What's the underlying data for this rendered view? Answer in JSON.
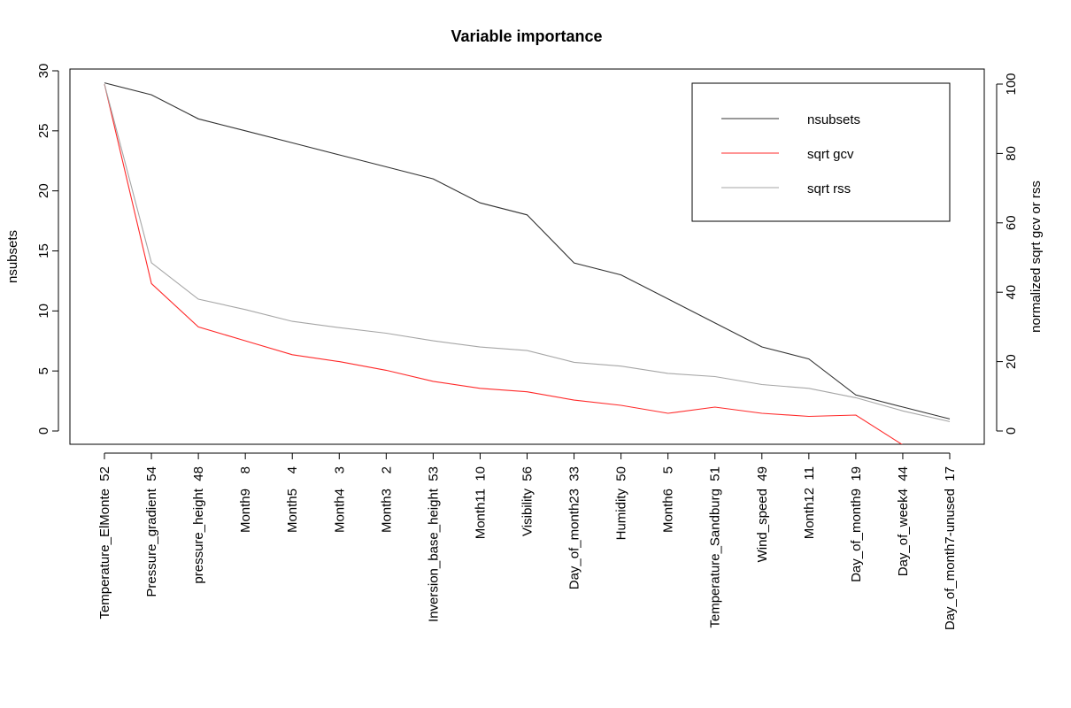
{
  "chart_data": {
    "type": "line",
    "title": "Variable importance",
    "ylabel_left": "nsubsets",
    "ylabel_right": "normalized sqrt gcv or rss",
    "ylim_left": [
      0,
      30
    ],
    "ylim_right": [
      0,
      100
    ],
    "yticks_left": [
      "0",
      "5",
      "10",
      "15",
      "20",
      "25",
      "30"
    ],
    "yticks_right": [
      "0",
      "20",
      "40",
      "60",
      "80",
      "100"
    ],
    "categories": [
      "Temperature_ElMonte  52",
      "Pressure_gradient  54",
      "pressure_height  48",
      "Month9    8",
      "Month5    4",
      "Month4    3",
      "Month3    2",
      "Inversion_base_height  53",
      "Month11  10",
      "Visibility  56",
      "Day_of_month23  33",
      "Humidity  50",
      "Month6    5",
      "Temperature_Sandburg  51",
      "Wind_speed  49",
      "Month12  11",
      "Day_of_month9  19",
      "Day_of_week4  44",
      "Day_of_month7-unused  17"
    ],
    "series": [
      {
        "name": "nsubsets",
        "axis": "left",
        "color": "#333333",
        "values": [
          29,
          28,
          26,
          25,
          24,
          23,
          22,
          21,
          19,
          18,
          14,
          13,
          11,
          9,
          7,
          6,
          3,
          2,
          1
        ]
      },
      {
        "name": "sqrt gcv",
        "axis": "right",
        "color": "#ff2a2a",
        "values": [
          100,
          42.5,
          30,
          26,
          22,
          20,
          17.5,
          14.3,
          12.3,
          11.3,
          8.9,
          7.4,
          5.1,
          6.9,
          5.1,
          4.2,
          4.6,
          -4,
          null
        ]
      },
      {
        "name": "sqrt rss",
        "axis": "right",
        "color": "#a6a6a6",
        "values": [
          100,
          48.5,
          38,
          35,
          31.6,
          29.8,
          28.2,
          26,
          24.2,
          23.2,
          19.8,
          18.7,
          16.6,
          15.7,
          13.4,
          12.3,
          9.6,
          5.8,
          2.7
        ]
      }
    ],
    "legend": {
      "placement": "top-right",
      "entries": [
        "nsubsets",
        "sqrt gcv",
        "sqrt rss"
      ]
    },
    "grid": false
  }
}
